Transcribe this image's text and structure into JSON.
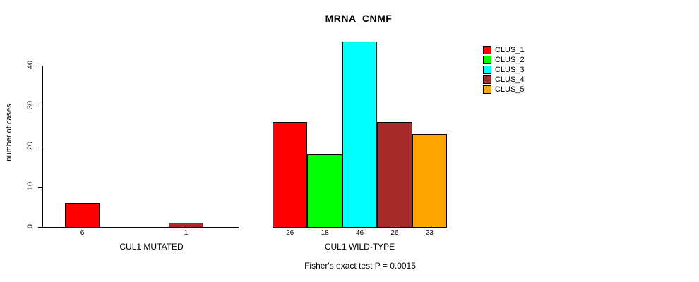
{
  "title": "MRNA_CNMF",
  "footnote": "Fisher's exact test P = 0.0015",
  "colors": {
    "background": "#ffffff",
    "axis": "#000000",
    "text": "#000000"
  },
  "legend": {
    "items": [
      {
        "label": "CLUS_1",
        "color": "#ff0000"
      },
      {
        "label": "CLUS_2",
        "color": "#00ff00"
      },
      {
        "label": "CLUS_3",
        "color": "#00ffff"
      },
      {
        "label": "CLUS_4",
        "color": "#a52a2a"
      },
      {
        "label": "CLUS_5",
        "color": "#ffa500"
      }
    ]
  },
  "chart_data": {
    "type": "bar",
    "title": "MRNA_CNMF",
    "xlabel": "",
    "ylabel": "number of cases",
    "ylim": [
      0,
      46
    ],
    "yticks": [
      0,
      10,
      20,
      30,
      40
    ],
    "grid": false,
    "legend_position": "top-right",
    "series": [
      "CLUS_1",
      "CLUS_2",
      "CLUS_3",
      "CLUS_4",
      "CLUS_5"
    ],
    "series_colors": [
      "#ff0000",
      "#00ff00",
      "#00ffff",
      "#a52a2a",
      "#ffa500"
    ],
    "groups": [
      {
        "label": "CUL1 MUTATED",
        "values": [
          6,
          0,
          0,
          1,
          0
        ],
        "bar_labels": [
          "6",
          "",
          "",
          "1",
          ""
        ]
      },
      {
        "label": "CUL1 WILD-TYPE",
        "values": [
          26,
          18,
          46,
          26,
          23
        ],
        "bar_labels": [
          "26",
          "18",
          "46",
          "26",
          "23"
        ]
      }
    ],
    "annotation": "Fisher's exact test P = 0.0015"
  }
}
